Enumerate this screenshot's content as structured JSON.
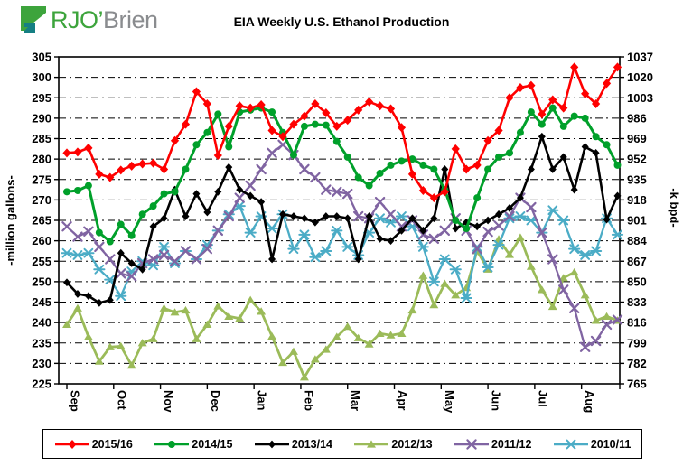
{
  "header": {
    "logo": {
      "text_primary": "RJO’",
      "text_secondary": "Brien",
      "icon_green": "#3da43c",
      "icon_teal": "#157f83"
    },
    "title": "EIA Weekly U.S. Ethanol Production"
  },
  "chart_data": {
    "type": "line",
    "title": "EIA Weekly U.S. Ethanol Production",
    "x_tick_labels": [
      "Sep",
      "Oct",
      "Nov",
      "Dec",
      "Jan",
      "Feb",
      "Mar",
      "Apr",
      "May",
      "Jun",
      "Jul",
      "Aug"
    ],
    "points_per_series": 52,
    "left_axis": {
      "label": "-million gallons-",
      "min": 225,
      "max": 305,
      "step": 5
    },
    "right_axis": {
      "label": "-k bpd-",
      "min": 765,
      "max": 1037,
      "step": 17
    },
    "grid": "horizontal dash-dot",
    "legend_position": "bottom",
    "series": [
      {
        "name": "2015/16",
        "color": "#ff0000",
        "marker": "diamond",
        "values": [
          281.5,
          281.7,
          282.7,
          276.3,
          275.5,
          277.3,
          278.3,
          278.8,
          279.0,
          277.5,
          284.5,
          288.5,
          296.5,
          293.5,
          280.9,
          288.0,
          293.0,
          292.5,
          293.3,
          287.0,
          285.5,
          288.5,
          290.5,
          293.5,
          291.3,
          288.0,
          289.5,
          292.0,
          294.0,
          293.0,
          292.3,
          287.7,
          276.3,
          272.3,
          270.5,
          272.0,
          282.5,
          277.5,
          278.5,
          284.5,
          287.0,
          295.0,
          297.5,
          298.0,
          291.0,
          294.5,
          292.5,
          302.5,
          296.0,
          293.5,
          298.5,
          302.5
        ]
      },
      {
        "name": "2014/15",
        "color": "#00a02a",
        "marker": "circle",
        "values": [
          272.0,
          272.3,
          273.5,
          262.0,
          259.8,
          264.0,
          261.3,
          266.5,
          268.5,
          271.5,
          272.0,
          277.5,
          283.5,
          286.5,
          291.0,
          283.0,
          291.5,
          292.0,
          292.5,
          291.5,
          286.5,
          281.0,
          288.0,
          288.5,
          288.3,
          284.3,
          280.5,
          275.5,
          273.5,
          276.5,
          278.5,
          279.5,
          280.0,
          278.5,
          277.5,
          272.5,
          265.0,
          263.0,
          270.5,
          277.5,
          280.5,
          281.5,
          286.5,
          291.5,
          288.5,
          292.5,
          288.0,
          290.5,
          290.0,
          285.5,
          283.5,
          278.5
        ]
      },
      {
        "name": "2013/14",
        "color": "#000000",
        "marker": "diamond-small",
        "values": [
          249.8,
          247.0,
          246.5,
          244.8,
          245.5,
          257.0,
          254.5,
          253.0,
          263.5,
          265.5,
          272.5,
          266.0,
          271.5,
          267.0,
          272.0,
          278.0,
          272.5,
          271.0,
          269.5,
          255.5,
          266.5,
          266.0,
          265.5,
          264.5,
          266.0,
          266.0,
          265.5,
          255.5,
          266.0,
          260.5,
          260.0,
          262.5,
          265.5,
          262.5,
          265.5,
          277.5,
          263.0,
          264.5,
          263.5,
          265.0,
          266.5,
          268.0,
          270.5,
          277.5,
          285.5,
          277.5,
          280.5,
          272.5,
          283.0,
          281.5,
          265.2,
          271.0
        ]
      },
      {
        "name": "2012/13",
        "color": "#9bbb59",
        "marker": "triangle",
        "values": [
          239.5,
          243.5,
          236.5,
          230.5,
          234.0,
          234.2,
          229.5,
          235.0,
          236.0,
          243.5,
          242.5,
          243.0,
          236.0,
          239.5,
          244.0,
          241.5,
          241.0,
          245.5,
          242.7,
          236.6,
          230.2,
          232.9,
          226.6,
          231.0,
          233.4,
          236.5,
          239.0,
          236.2,
          234.7,
          237.3,
          236.9,
          237.3,
          243.0,
          251.5,
          244.3,
          249.5,
          246.7,
          248.5,
          257.5,
          253.0,
          260.4,
          256.6,
          260.8,
          253.7,
          248.0,
          243.9,
          250.9,
          252.3,
          246.7,
          240.5,
          241.5,
          240.5
        ]
      },
      {
        "name": "2011/12",
        "color": "#8064a2",
        "marker": "x",
        "values": [
          263.5,
          261.0,
          262.3,
          258.5,
          255.5,
          252.0,
          251.3,
          254.5,
          255.5,
          256.5,
          255.0,
          257.5,
          255.5,
          258.0,
          262.5,
          266.0,
          270.5,
          273.5,
          277.5,
          281.5,
          283.5,
          281.0,
          277.5,
          275.5,
          272.5,
          272.0,
          271.5,
          266.0,
          265.5,
          269.5,
          266.5,
          263.5,
          265.0,
          261.5,
          260.5,
          262.5,
          265.5,
          262.5,
          258.0,
          262.2,
          263.7,
          266.0,
          270.5,
          268.2,
          262.0,
          255.5,
          248.0,
          243.5,
          234.0,
          235.5,
          239.5,
          240.7
        ]
      },
      {
        "name": "2010/11",
        "color": "#4bacc6",
        "marker": "asterisk",
        "values": [
          257.0,
          256.5,
          257.0,
          253.0,
          250.5,
          246.5,
          252.5,
          255.0,
          254.0,
          258.5,
          254.5,
          257.5,
          255.5,
          259.0,
          262.5,
          266.5,
          268.5,
          262.0,
          266.0,
          263.0,
          266.5,
          258.0,
          261.5,
          256.0,
          257.5,
          262.5,
          258.5,
          256.5,
          262.0,
          265.5,
          264.5,
          266.0,
          263.5,
          258.5,
          250.0,
          255.5,
          253.0,
          246.0,
          258.5,
          253.5,
          259.0,
          265.5,
          266.0,
          265.0,
          262.0,
          267.5,
          265.0,
          258.0,
          256.5,
          257.5,
          265.5,
          261.5
        ]
      }
    ]
  }
}
